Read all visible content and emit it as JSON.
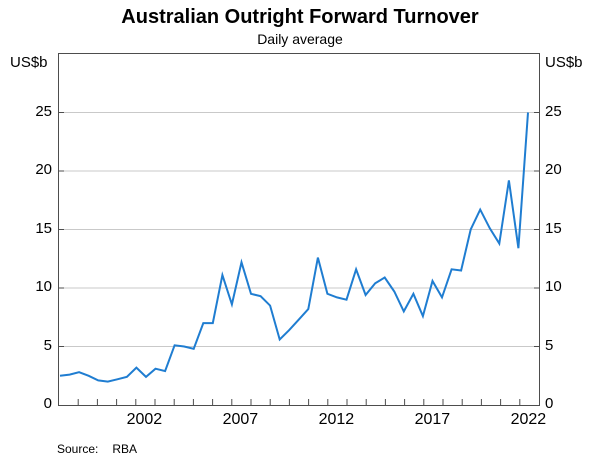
{
  "title": "Australian Outright Forward Turnover",
  "subtitle": "Daily average",
  "axis_unit_left": "US$b",
  "axis_unit_right": "US$b",
  "source_label": "Source:",
  "source_value": "RBA",
  "colors": {
    "line": "#1f7dd1",
    "grid": "#c9c9c9",
    "axis": "#4d4d4d",
    "text": "#000000",
    "background": "#ffffff"
  },
  "chart_data": {
    "type": "line",
    "title": "Australian Outright Forward Turnover",
    "subtitle": "Daily average",
    "ylabel": "US$b",
    "xlabel": "",
    "legend": "none",
    "grid": true,
    "frequency": "semiannual",
    "series_name": "Outright forward turnover, daily average",
    "x_domain": [
      1998,
      2023
    ],
    "y_domain": [
      0,
      30
    ],
    "y_ticks": [
      0,
      5,
      10,
      15,
      20,
      25
    ],
    "x_tick_label_years": [
      2002,
      2007,
      2012,
      2017,
      2022
    ],
    "x_minor_tick_start": 1999,
    "x_minor_tick_end": 2022,
    "periods": [
      "1998 H1",
      "1998 H2",
      "1999 H1",
      "1999 H2",
      "2000 H1",
      "2000 H2",
      "2001 H1",
      "2001 H2",
      "2002 H1",
      "2002 H2",
      "2003 H1",
      "2003 H2",
      "2004 H1",
      "2004 H2",
      "2005 H1",
      "2005 H2",
      "2006 H1",
      "2006 H2",
      "2007 H1",
      "2007 H2",
      "2008 H1",
      "2008 H2",
      "2009 H1",
      "2009 H2",
      "2010 H1",
      "2010 H2",
      "2011 H1",
      "2011 H2",
      "2012 H1",
      "2012 H2",
      "2013 H1",
      "2013 H2",
      "2014 H1",
      "2014 H2",
      "2015 H1",
      "2015 H2",
      "2016 H1",
      "2016 H2",
      "2017 H1",
      "2017 H2",
      "2018 H1",
      "2018 H2",
      "2019 H1",
      "2019 H2",
      "2020 H1",
      "2020 H2",
      "2021 H1",
      "2021 H2",
      "2022 H1",
      "2022 H2"
    ],
    "values": [
      2.5,
      2.6,
      2.8,
      2.5,
      2.1,
      2.0,
      2.2,
      2.4,
      3.2,
      2.4,
      3.1,
      2.9,
      5.1,
      5.0,
      4.8,
      7.0,
      7.0,
      11.1,
      8.6,
      12.2,
      9.5,
      9.3,
      8.5,
      5.6,
      6.4,
      7.3,
      8.2,
      12.6,
      9.5,
      9.2,
      9.0,
      11.6,
      9.4,
      10.4,
      10.9,
      9.7,
      8.0,
      9.5,
      7.6,
      10.6,
      9.2,
      11.6,
      11.5,
      15.0,
      16.7,
      15.1,
      13.8,
      19.2,
      13.4,
      25.0
    ]
  }
}
